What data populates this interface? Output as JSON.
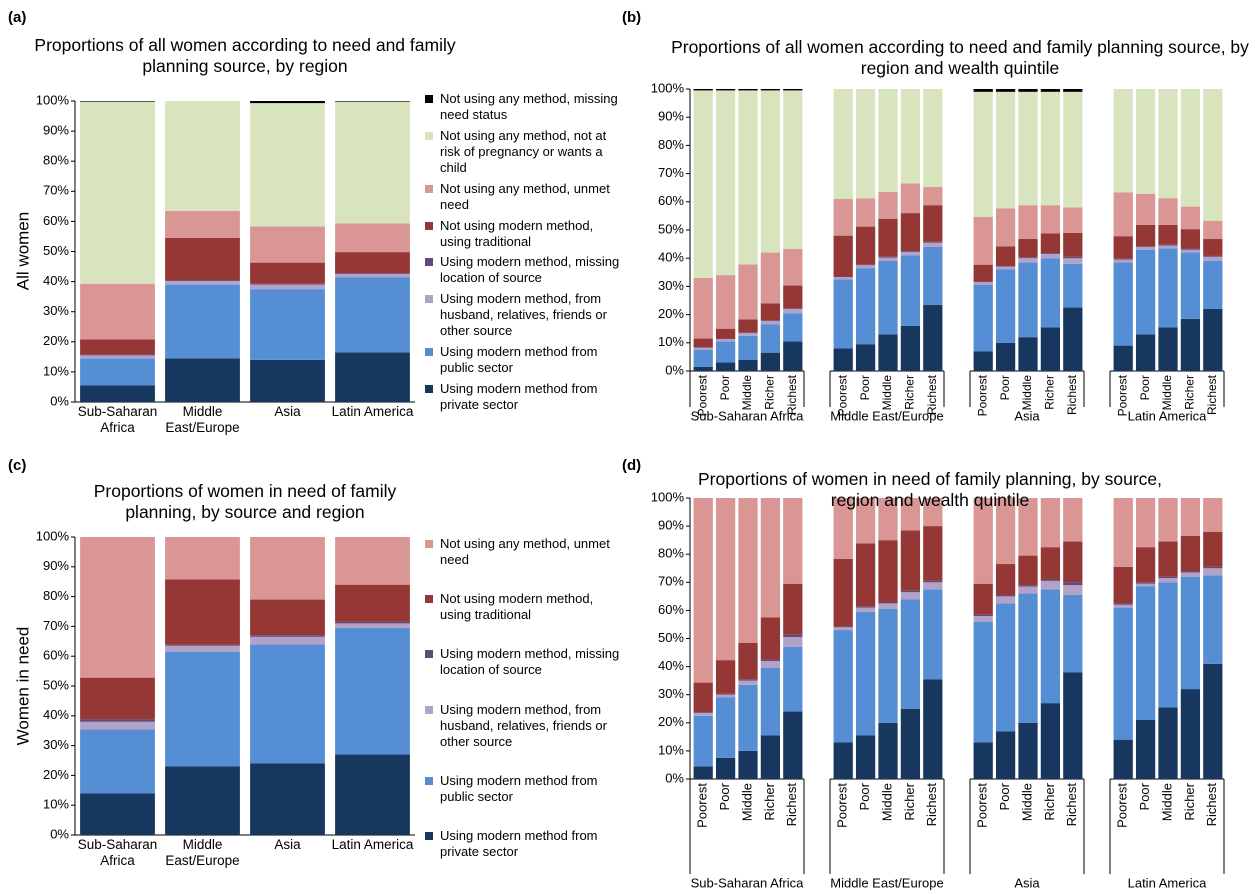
{
  "chart_data": [
    {
      "type": "bar",
      "label": "(a)",
      "title": "Proportions of all women according to need and family planning source, by region",
      "ylabel": "All women",
      "categories": [
        "Sub-Saharan Africa",
        "Middle East/Europe",
        "Asia",
        "Latin America"
      ],
      "series": [
        {
          "name": "Using modern method from private sector",
          "color": "#17375e",
          "values": [
            5.5,
            14.5,
            14,
            16.5
          ]
        },
        {
          "name": "Using modern method from public sector",
          "color": "#558ed5",
          "values": [
            9,
            24.5,
            23.5,
            25
          ]
        },
        {
          "name": "Using modern method, from husband, relatives, friends or other source",
          "color": "#b3a2c7",
          "values": [
            1,
            1.2,
            1.5,
            1
          ]
        },
        {
          "name": "Using modern method, missing location of source",
          "color": "#604a7b",
          "values": [
            0.3,
            0.3,
            0.3,
            0.3
          ]
        },
        {
          "name": "Not using modern method, using traditional",
          "color": "#953735",
          "values": [
            5,
            14,
            7,
            7
          ]
        },
        {
          "name": "Not using any method, unmet need",
          "color": "#d99694",
          "values": [
            18.5,
            9,
            12,
            9.5
          ]
        },
        {
          "name": "Not using any method, not at risk of pregnancy or wants a child",
          "color": "#d7e4bd",
          "values": [
            60.5,
            36.5,
            41,
            40.5
          ]
        },
        {
          "name": "Not using any method, missing need status",
          "color": "#000000",
          "values": [
            0.2,
            0,
            0.7,
            0.2
          ]
        }
      ],
      "ylim": [
        0,
        100
      ],
      "yticks": [
        {
          "value": 0,
          "label": "0%"
        },
        {
          "value": 10,
          "label": "10%"
        },
        {
          "value": 20,
          "label": "20%"
        },
        {
          "value": 30,
          "label": "30%"
        },
        {
          "value": 40,
          "label": "40%"
        },
        {
          "value": 50,
          "label": "50%"
        },
        {
          "value": 60,
          "label": "60%"
        },
        {
          "value": 70,
          "label": "70%"
        },
        {
          "value": 80,
          "label": "80%"
        },
        {
          "value": 90,
          "label": "90%"
        },
        {
          "value": 100,
          "label": "100%"
        }
      ],
      "legend": "right"
    },
    {
      "type": "bar",
      "label": "(b)",
      "title": "Proportions of all women according to need and family planning source, by region and wealth quintile",
      "groups": [
        "Sub-Saharan Africa",
        "Middle East/Europe",
        "Asia",
        "Latin America"
      ],
      "categories": [
        "Poorest",
        "Poor",
        "Middle",
        "Richer",
        "Richest",
        "Poorest",
        "Poor",
        "Middle",
        "Richer",
        "Richest",
        "Poorest",
        "Poor",
        "Middle",
        "Richer",
        "Richest",
        "Poorest",
        "Poor",
        "Middle",
        "Richer",
        "Richest"
      ],
      "series": [
        {
          "color": "#17375e",
          "values": [
            1.5,
            3,
            4,
            6.5,
            10.5,
            8,
            9.5,
            13,
            16,
            23.5,
            7,
            10,
            12,
            15.5,
            22.5,
            9,
            13,
            15.5,
            18.5,
            22
          ]
        },
        {
          "color": "#558ed5",
          "values": [
            6,
            7.5,
            8.5,
            10,
            10,
            24.5,
            27,
            26,
            25,
            20.5,
            23.5,
            26,
            26.5,
            24.5,
            15.5,
            29.5,
            30,
            28,
            23.5,
            17
          ]
        },
        {
          "color": "#b3a2c7",
          "values": [
            0.8,
            0.8,
            1,
            1.2,
            1.5,
            0.8,
            1,
            1.2,
            1.2,
            1.5,
            1,
            1,
            1.5,
            1.5,
            2,
            1,
            1,
            1,
            1,
            1.5
          ]
        },
        {
          "color": "#604a7b",
          "values": [
            0.2,
            0.2,
            0.3,
            0.3,
            0.3,
            0.2,
            0.2,
            0.3,
            0.3,
            0.3,
            0.2,
            0.2,
            0.3,
            0.3,
            0.5,
            0.3,
            0.3,
            0.3,
            0.3,
            0.3
          ]
        },
        {
          "color": "#953735",
          "values": [
            3,
            3.5,
            4.5,
            6,
            8,
            14.5,
            13.5,
            13.5,
            13.5,
            13,
            6,
            7,
            6.5,
            7,
            8.5,
            8,
            7.5,
            7,
            7,
            6
          ]
        },
        {
          "color": "#d99694",
          "values": [
            21.5,
            19,
            19.5,
            18,
            13,
            13,
            10,
            9.5,
            10.5,
            6.5,
            17,
            13.5,
            12,
            10,
            9,
            15.5,
            11,
            9.5,
            8,
            6.5
          ]
        },
        {
          "color": "#d7e4bd",
          "values": [
            66.5,
            65.5,
            61.7,
            57.5,
            56.2,
            39,
            38.8,
            36.5,
            33.5,
            34.7,
            44.3,
            41.3,
            40.2,
            40.2,
            41,
            36.7,
            37.2,
            38.7,
            41.7,
            46.7
          ]
        },
        {
          "color": "#000000",
          "values": [
            0.5,
            0.5,
            0.5,
            0.5,
            0.5,
            0,
            0,
            0,
            0,
            0,
            1,
            1,
            1,
            1,
            1,
            0,
            0,
            0,
            0,
            0
          ]
        }
      ],
      "ylim": [
        0,
        100
      ],
      "yticks": [
        {
          "value": 0,
          "label": "0%"
        },
        {
          "value": 10,
          "label": "10%"
        },
        {
          "value": 20,
          "label": "20%"
        },
        {
          "value": 30,
          "label": "30%"
        },
        {
          "value": 40,
          "label": "40%"
        },
        {
          "value": 50,
          "label": "50%"
        },
        {
          "value": 60,
          "label": "60%"
        },
        {
          "value": 70,
          "label": "70%"
        },
        {
          "value": 80,
          "label": "80%"
        },
        {
          "value": 90,
          "label": "90%"
        },
        {
          "value": 100,
          "label": "100%"
        }
      ]
    },
    {
      "type": "bar",
      "label": "(c)",
      "title": "Proportions of women in need of family planning, by source and region",
      "ylabel": "Women in need",
      "categories": [
        "Sub-Saharan Africa",
        "Middle East/Europe",
        "Asia",
        "Latin America"
      ],
      "series": [
        {
          "name": "Using modern method from private sector",
          "color": "#17375e",
          "values": [
            14,
            23,
            24,
            27
          ]
        },
        {
          "name": "Using modern method from public sector",
          "color": "#558ed5",
          "values": [
            21.5,
            38.5,
            40,
            42.5
          ]
        },
        {
          "name": "Using modern method, from husband, relatives, friends or other source",
          "color": "#b3a2c7",
          "values": [
            2.5,
            2,
            2.5,
            1.5
          ]
        },
        {
          "name": "Using modern method, missing location of source",
          "color": "#604a7b",
          "values": [
            0.8,
            0.3,
            0.5,
            0.5
          ]
        },
        {
          "name": "Not using modern method, using traditional",
          "color": "#953735",
          "values": [
            14,
            22,
            12,
            12.5
          ]
        },
        {
          "name": "Not using any method, unmet need",
          "color": "#d99694",
          "values": [
            47.2,
            14.2,
            21,
            16
          ]
        }
      ],
      "ylim": [
        0,
        100
      ],
      "yticks": [
        {
          "value": 0,
          "label": "0%"
        },
        {
          "value": 10,
          "label": "10%"
        },
        {
          "value": 20,
          "label": "20%"
        },
        {
          "value": 30,
          "label": "30%"
        },
        {
          "value": 40,
          "label": "40%"
        },
        {
          "value": 50,
          "label": "50%"
        },
        {
          "value": 60,
          "label": "60%"
        },
        {
          "value": 70,
          "label": "70%"
        },
        {
          "value": 80,
          "label": "80%"
        },
        {
          "value": 90,
          "label": "90%"
        },
        {
          "value": 100,
          "label": "100%"
        }
      ],
      "legend": "right"
    },
    {
      "type": "bar",
      "label": "(d)",
      "title": "Proportions of women in need of family planning, by source, region and wealth quintile",
      "groups": [
        "Sub-Saharan Africa",
        "Middle East/Europe",
        "Asia",
        "Latin America"
      ],
      "categories": [
        "Poorest",
        "Poor",
        "Middle",
        "Richer",
        "Richest",
        "Poorest",
        "Poor",
        "Middle",
        "Richer",
        "Richest",
        "Poorest",
        "Poor",
        "Middle",
        "Richer",
        "Richest",
        "Poorest",
        "Poor",
        "Middle",
        "Richer",
        "Richest"
      ],
      "series": [
        {
          "color": "#17375e",
          "values": [
            4.5,
            7.5,
            10,
            15.5,
            24,
            13,
            15.5,
            20,
            25,
            35.5,
            13,
            17,
            20,
            27,
            38,
            14,
            21,
            25.5,
            32,
            41
          ]
        },
        {
          "color": "#558ed5",
          "values": [
            18,
            21.5,
            23.5,
            24,
            23,
            40,
            44,
            40.5,
            39,
            32,
            43,
            45.5,
            46,
            40.5,
            27.5,
            47,
            47.5,
            44.5,
            40,
            31.5
          ]
        },
        {
          "color": "#b3a2c7",
          "values": [
            1,
            1,
            1.5,
            2.5,
            3.5,
            1,
            1.5,
            2,
            2.5,
            2.5,
            2,
            2.5,
            2.5,
            3,
            3.5,
            1,
            1,
            1.5,
            1.5,
            2.5
          ]
        },
        {
          "color": "#604a7b",
          "values": [
            0.3,
            0.3,
            0.5,
            0.5,
            1,
            0.3,
            0.3,
            0.5,
            0.5,
            0.5,
            0.5,
            0.5,
            0.5,
            0.5,
            1,
            0.5,
            0.5,
            0.5,
            0.5,
            0.5
          ]
        },
        {
          "color": "#953735",
          "values": [
            10.5,
            12,
            13,
            15,
            18,
            24,
            22.5,
            22,
            21.5,
            19.5,
            11,
            11,
            10.5,
            11.5,
            14.5,
            13,
            12.5,
            12.5,
            12.5,
            12.5
          ]
        },
        {
          "color": "#d99694",
          "values": [
            65.7,
            57.7,
            51.5,
            42.5,
            30.5,
            21.7,
            16.2,
            15,
            11.5,
            10,
            30.5,
            23.5,
            20.5,
            17.5,
            15.5,
            24.5,
            17.5,
            15.5,
            13.5,
            12
          ]
        }
      ],
      "ylim": [
        0,
        100
      ],
      "yticks": [
        {
          "value": 0,
          "label": "0%"
        },
        {
          "value": 10,
          "label": "10%"
        },
        {
          "value": 20,
          "label": "20%"
        },
        {
          "value": 30,
          "label": "30%"
        },
        {
          "value": 40,
          "label": "40%"
        },
        {
          "value": 50,
          "label": "50%"
        },
        {
          "value": 60,
          "label": "60%"
        },
        {
          "value": 70,
          "label": "70%"
        },
        {
          "value": 80,
          "label": "80%"
        },
        {
          "value": 90,
          "label": "90%"
        },
        {
          "value": 100,
          "label": "100%"
        }
      ]
    }
  ]
}
